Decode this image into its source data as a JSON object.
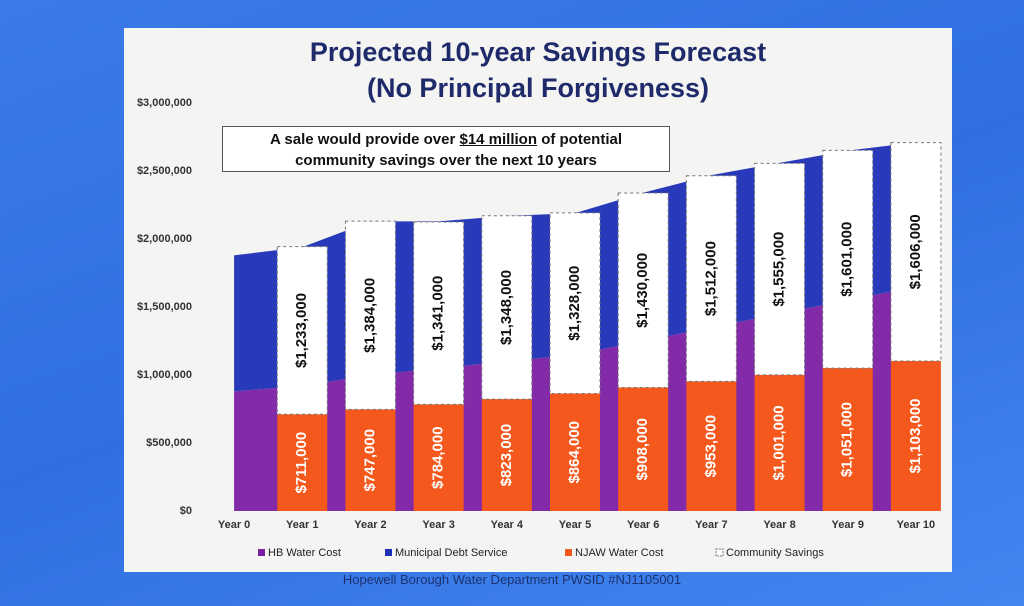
{
  "chart_data": {
    "type": "combo",
    "title_lines": [
      "Projected 10-year Savings Forecast",
      "(No Principal Forgiveness)"
    ],
    "annotation": {
      "before": "A sale would provide over",
      "emphasis": "$14 million",
      "after": "of potential",
      "line2": "community savings over the next 10 years"
    },
    "footer": "Hopewell Borough Water Department PWSID #NJ1105001",
    "categories": [
      "Year 0",
      "Year 1",
      "Year 2",
      "Year 3",
      "Year 4",
      "Year 5",
      "Year 6",
      "Year 7",
      "Year 8",
      "Year 9",
      "Year 10"
    ],
    "ylim": [
      0,
      3000000
    ],
    "yticks": [
      {
        "value": 0,
        "label": "$0"
      },
      {
        "value": 500000,
        "label": "$500,000"
      },
      {
        "value": 1000000,
        "label": "$1,000,000"
      },
      {
        "value": 1500000,
        "label": "$1,500,000"
      },
      {
        "value": 2000000,
        "label": "$2,000,000"
      },
      {
        "value": 2500000,
        "label": "$2,500,000"
      },
      {
        "value": 3000000,
        "label": "$3,000,000"
      }
    ],
    "series": [
      {
        "name": "HB Water Cost",
        "kind": "area",
        "color": "#7b1fa2",
        "values": [
          880000,
          920000,
          1000000,
          1050000,
          1100000,
          1150000,
          1250000,
          1350000,
          1450000,
          1550000,
          1650000
        ]
      },
      {
        "name": "Municipal Debt Service",
        "kind": "area",
        "color": "#1c2fb5",
        "values": [
          1000000,
          1020000,
          1130000,
          1080000,
          1070000,
          1040000,
          1090000,
          1120000,
          1110000,
          1100000,
          1060000
        ]
      },
      {
        "name": "NJAW Water Cost",
        "kind": "bar",
        "color": "#f4581c",
        "values": [
          null,
          711000,
          747000,
          784000,
          823000,
          864000,
          908000,
          953000,
          1001000,
          1051000,
          1103000
        ],
        "value_labels": [
          null,
          "$711,000",
          "$747,000",
          "$784,000",
          "$823,000",
          "$864,000",
          "$908,000",
          "$953,000",
          "$1,001,000",
          "$1,051,000",
          "$1,103,000"
        ]
      },
      {
        "name": "Community Savings",
        "kind": "bar",
        "color": "#ffffff",
        "values": [
          null,
          1233000,
          1384000,
          1341000,
          1348000,
          1328000,
          1430000,
          1512000,
          1555000,
          1601000,
          1606000
        ],
        "value_labels": [
          null,
          "$1,233,000",
          "$1,384,000",
          "$1,341,000",
          "$1,348,000",
          "$1,328,000",
          "$1,430,000",
          "$1,512,000",
          "$1,555,000",
          "$1,601,000",
          "$1,606,000"
        ]
      }
    ]
  }
}
